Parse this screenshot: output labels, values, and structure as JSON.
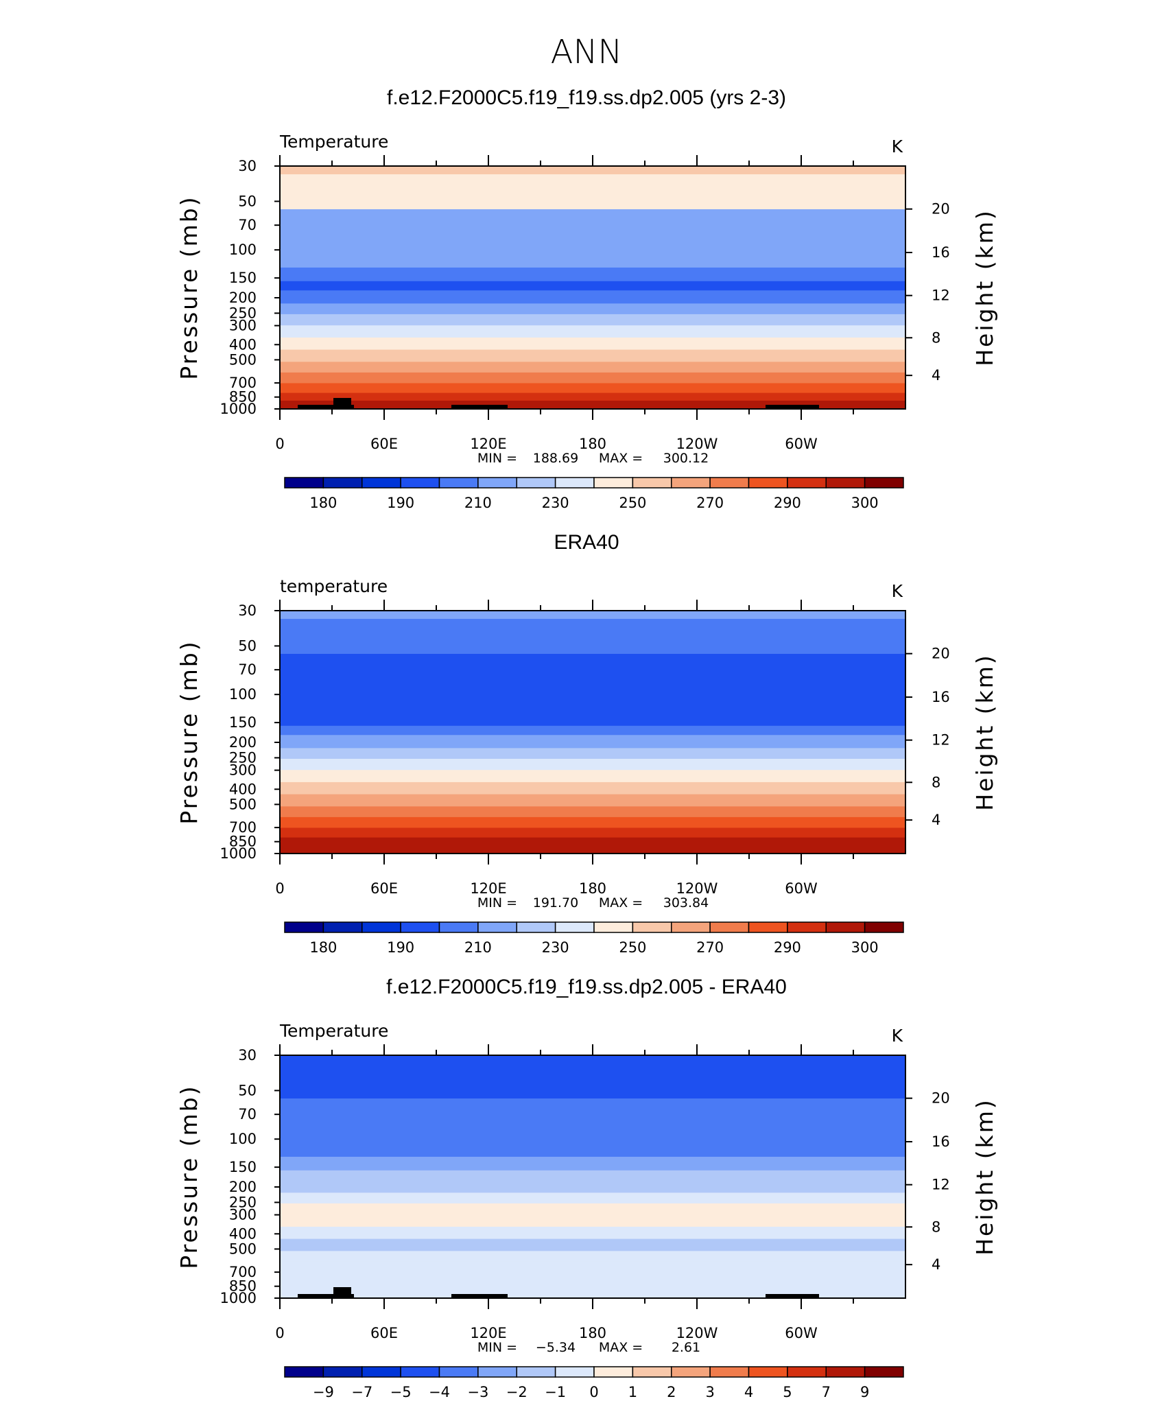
{
  "figure_title": "ANN",
  "y_axis_label": "Pressure  (mb)",
  "right_axis_label": "Height  (km)",
  "color_levels": [
    "#00008b",
    "#0020b0",
    "#0035d8",
    "#1e50f0",
    "#4a7af5",
    "#80a6f8",
    "#b0c8f8",
    "#dce8fb",
    "#fdecdc",
    "#f8c8aa",
    "#f4a47c",
    "#f07c4c",
    "#ee5420",
    "#d43010",
    "#b01808",
    "#800000"
  ],
  "chart_data": [
    {
      "type": "contour",
      "panel_title": "f.e12.F2000C5.f19_f19.ss.dp2.005 (yrs 2-3)",
      "variable": "Temperature",
      "units": "K",
      "x_ticks": [
        "0",
        "60E",
        "120E",
        "180",
        "120W",
        "60W"
      ],
      "y_ticks": [
        "30",
        "50",
        "70",
        "100",
        "150",
        "200",
        "250",
        "300",
        "400",
        "500",
        "700",
        "850",
        "1000"
      ],
      "height_ticks": [
        "20",
        "16",
        "12",
        "8",
        "4"
      ],
      "min_label": "MIN =",
      "min": "188.69",
      "max_label": "MAX =",
      "max": "300.12",
      "colorbar_labels": [
        "180",
        "190",
        "210",
        "230",
        "250",
        "270",
        "290",
        "300"
      ],
      "bands": [
        9,
        8,
        5,
        4,
        3,
        4,
        5,
        6,
        7,
        8,
        9,
        10,
        11,
        12,
        13,
        14
      ]
    },
    {
      "type": "contour",
      "panel_title": "ERA40",
      "variable": "temperature",
      "units": "K",
      "x_ticks": [
        "0",
        "60E",
        "120E",
        "180",
        "120W",
        "60W"
      ],
      "y_ticks": [
        "30",
        "50",
        "70",
        "100",
        "150",
        "200",
        "250",
        "300",
        "400",
        "500",
        "700",
        "850",
        "1000"
      ],
      "height_ticks": [
        "20",
        "16",
        "12",
        "8",
        "4"
      ],
      "min_label": "MIN =",
      "min": "191.70",
      "max_label": "MAX =",
      "max": "303.84",
      "colorbar_labels": [
        "180",
        "190",
        "210",
        "230",
        "250",
        "270",
        "290",
        "300"
      ],
      "bands": [
        5,
        4,
        3,
        3,
        4,
        5,
        6,
        7,
        8,
        9,
        10,
        11,
        12,
        13,
        14,
        14
      ]
    },
    {
      "type": "contour",
      "panel_title": "f.e12.F2000C5.f19_f19.ss.dp2.005 - ERA40",
      "variable": "Temperature",
      "units": "K",
      "x_ticks": [
        "0",
        "60E",
        "120E",
        "180",
        "120W",
        "60W"
      ],
      "y_ticks": [
        "30",
        "50",
        "70",
        "100",
        "150",
        "200",
        "250",
        "300",
        "400",
        "500",
        "700",
        "850",
        "1000"
      ],
      "height_ticks": [
        "20",
        "16",
        "12",
        "8",
        "4"
      ],
      "min_label": "MIN =",
      "min": "−5.34",
      "max_label": "MAX =",
      "max": "2.61",
      "colorbar_labels": [
        "−9",
        "−7",
        "−5",
        "−4",
        "−3",
        "−2",
        "−1",
        "0",
        "1",
        "2",
        "3",
        "4",
        "5",
        "7",
        "9"
      ],
      "bands": [
        3,
        3,
        4,
        5,
        6,
        6,
        7,
        8,
        8,
        7,
        6,
        7,
        7,
        7,
        7,
        7
      ]
    }
  ]
}
